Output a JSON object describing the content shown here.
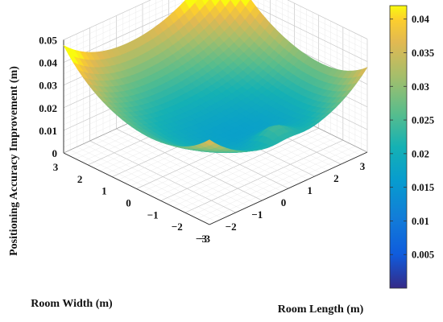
{
  "chart_data": {
    "type": "surface3d",
    "title": "",
    "xlabel": "Room Length (m)",
    "ylabel": "Room Width (m)",
    "zlabel": "Positioning Accuracy Improvement (m)",
    "xlim": [
      -3,
      3
    ],
    "ylim": [
      -3,
      3
    ],
    "zlim": [
      0,
      0.05
    ],
    "x_ticks": [
      -3,
      -2,
      -1,
      0,
      1,
      2,
      3
    ],
    "y_ticks": [
      -3,
      -2,
      -1,
      0,
      1,
      2,
      3
    ],
    "z_ticks": [
      0,
      0.01,
      0.02,
      0.03,
      0.04,
      0.05
    ],
    "x_tick_labels": [
      "−3",
      "−2",
      "−1",
      "0",
      "1",
      "2",
      "3"
    ],
    "y_tick_labels": [
      "−3",
      "−2",
      "−1",
      "0",
      "1",
      "2",
      "3"
    ],
    "z_tick_labels": [
      "0",
      "0.01",
      "0.02",
      "0.03",
      "0.04",
      "0.05"
    ],
    "grid": true,
    "colormap": "parula",
    "colorbar": {
      "range": [
        0,
        0.042
      ],
      "ticks": [
        0.005,
        0.01,
        0.015,
        0.02,
        0.025,
        0.03,
        0.035,
        0.04
      ],
      "tick_labels": [
        "0.005",
        "0.01",
        "0.015",
        "0.02",
        "0.025",
        "0.03",
        "0.035",
        "0.04"
      ],
      "placement": "right"
    },
    "surface_points": {
      "corners": [
        {
          "x": 3,
          "y": 3,
          "z": 0.044
        },
        {
          "x": -3,
          "y": 3,
          "z": 0.041
        },
        {
          "x": 3,
          "y": -3,
          "z": 0.026
        },
        {
          "x": -3,
          "y": -3,
          "z": 0.002
        }
      ],
      "center": {
        "x": 0,
        "y": 0,
        "z": 0.019
      },
      "edge_midpoints": [
        {
          "x": 0,
          "y": 3,
          "z": 0.036
        },
        {
          "x": -3,
          "y": 0,
          "z": 0.02
        },
        {
          "x": 3,
          "y": 0,
          "z": 0.028
        },
        {
          "x": 0,
          "y": -3,
          "z": 0.016
        }
      ],
      "local_bump": {
        "x": 0,
        "y": -2.4,
        "z": 0.021
      }
    }
  }
}
